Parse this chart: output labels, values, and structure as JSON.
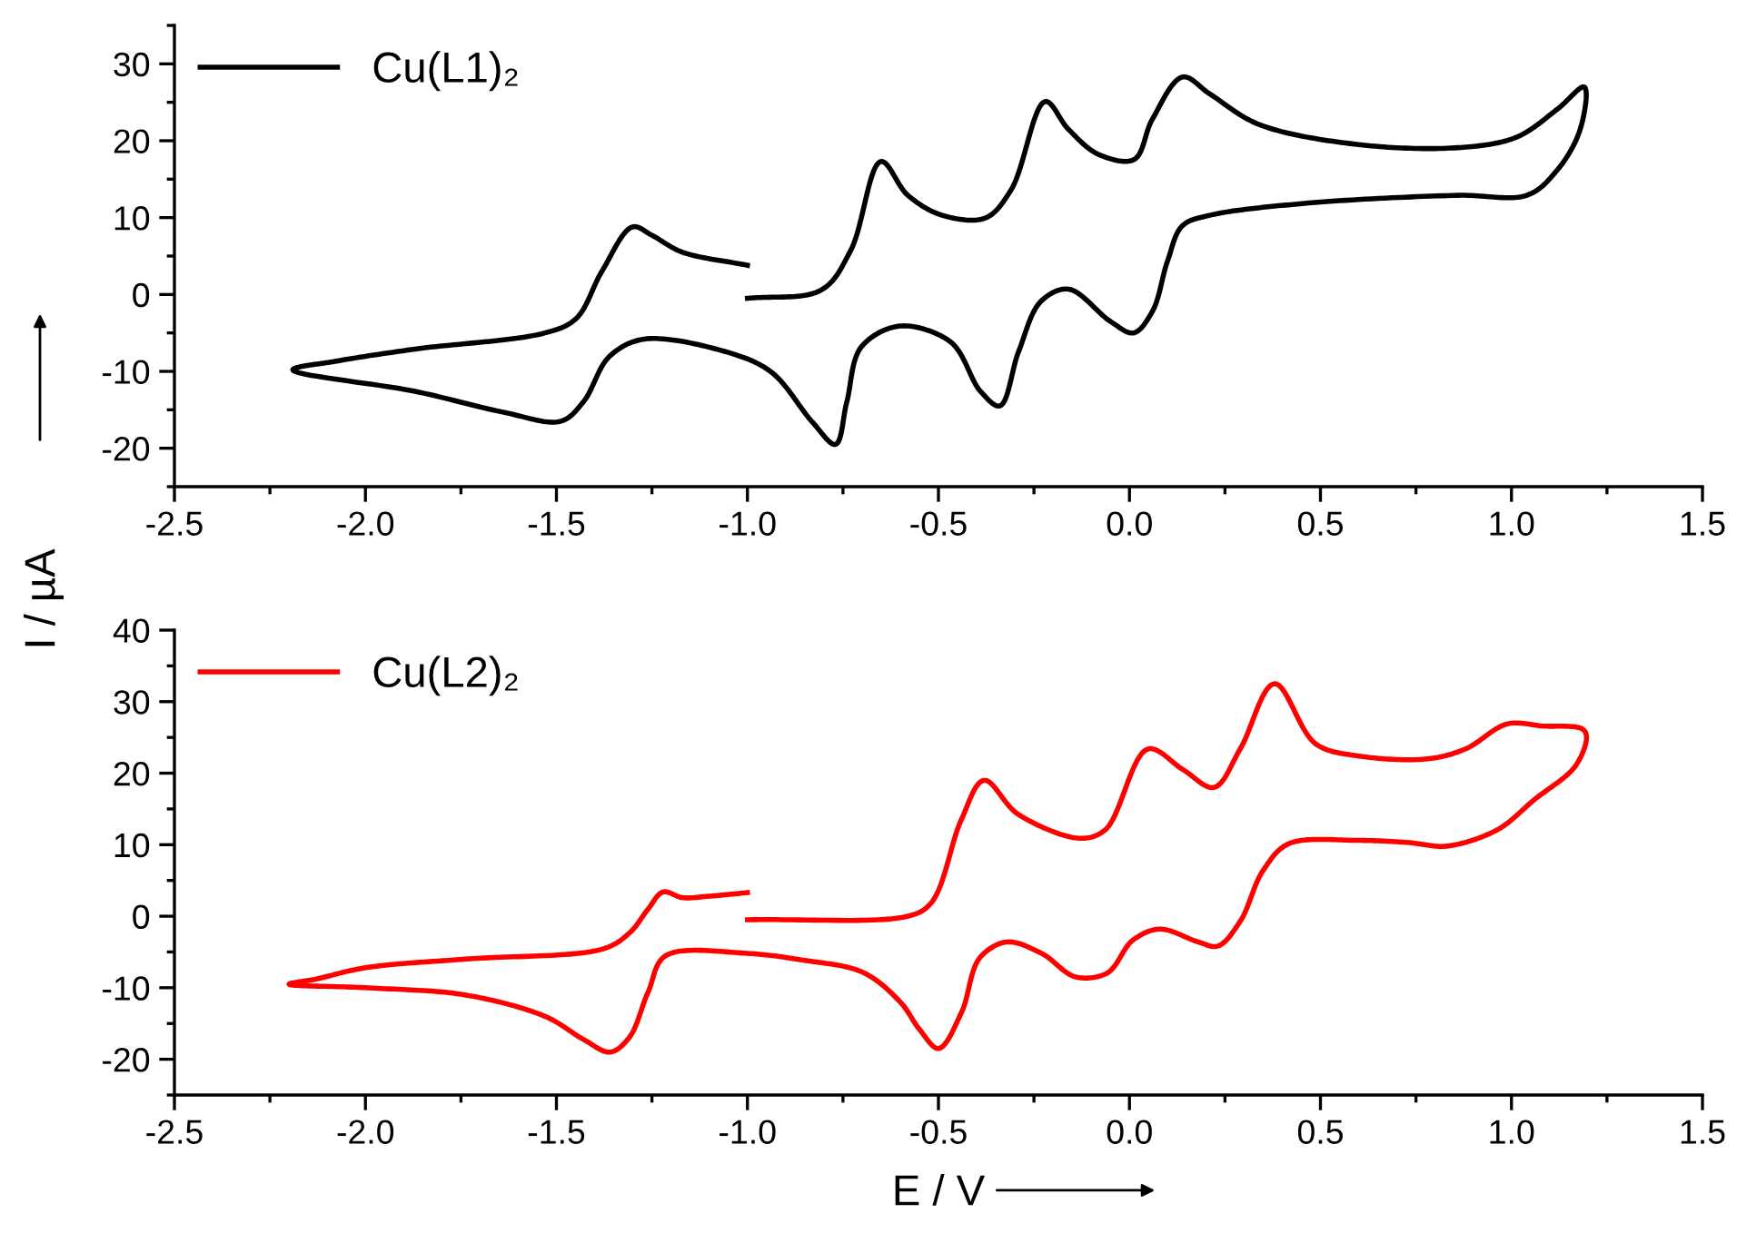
{
  "chart_data": [
    {
      "type": "line",
      "ylabel": "I / µA",
      "legend": "top left",
      "grid": false,
      "xlim": [
        -2.5,
        1.5
      ],
      "xticks": [
        -2.5,
        {
          "value": -2,
          "label": "-2.0"
        },
        -1.5,
        {
          "value": -1,
          "label": "-1.0"
        },
        -0.5,
        {
          "value": 0,
          "label": "0.0"
        },
        0.5,
        {
          "value": 1,
          "label": "1.0"
        },
        1.5
      ],
      "ylim": [
        -25,
        35
      ],
      "yticks": [
        -20,
        -10,
        0,
        10,
        20,
        30
      ],
      "series": [
        {
          "name": "Cu(L1)₂",
          "color": "#000000",
          "x": [
            -1.0,
            -0.81,
            -0.73,
            -0.65,
            -0.58,
            -0.49,
            -0.38,
            -0.31,
            -0.22,
            -0.16,
            -0.08,
            0.01,
            0.06,
            0.14,
            0.21,
            0.34,
            0.6,
            0.86,
            1.01,
            1.12,
            1.19,
            1.18,
            1.12,
            1.04,
            0.86,
            0.47,
            0.21,
            0.14,
            0.1,
            0.06,
            0.01,
            -0.05,
            -0.16,
            -0.23,
            -0.29,
            -0.34,
            -0.39,
            -0.47,
            -0.6,
            -0.7,
            -0.74,
            -0.77,
            -0.83,
            -0.94,
            -1.06,
            -1.27,
            -1.36,
            -1.43,
            -1.49,
            -1.64,
            -1.87,
            -2.19,
            -2.08,
            -1.87,
            -1.53,
            -1.45,
            -1.38,
            -1.3,
            -1.25,
            -1.17,
            -1.0
          ],
          "values": [
            -0.5,
            0.5,
            5.7,
            17.3,
            12.9,
            10.3,
            9.9,
            13.6,
            25.1,
            21.5,
            18.2,
            17.5,
            22.8,
            28.3,
            26.1,
            22.1,
            19.5,
            19.1,
            20.4,
            24.1,
            27,
            21.5,
            16.2,
            12.9,
            12.9,
            11.9,
            10.3,
            9,
            4.4,
            -2.2,
            -5,
            -3.5,
            0.7,
            -0.8,
            -7.4,
            -14.5,
            -12.6,
            -6.1,
            -4.1,
            -6.7,
            -14,
            -19.5,
            -16.6,
            -10,
            -7.4,
            -5.8,
            -8,
            -14,
            -16.5,
            -15.3,
            -12.6,
            -9.8,
            -8.7,
            -7.1,
            -5,
            -3.2,
            3.1,
            8.8,
            7.7,
            5.5,
            3.8
          ]
        }
      ]
    },
    {
      "type": "line",
      "xlabel": "E / V",
      "legend": "top left",
      "grid": false,
      "xlim": [
        -2.5,
        1.5
      ],
      "xticks": [
        -2.5,
        {
          "value": -2,
          "label": "-2.0"
        },
        -1.5,
        {
          "value": -1,
          "label": "-1.0"
        },
        -0.5,
        {
          "value": 0,
          "label": "0.0"
        },
        0.5,
        {
          "value": 1,
          "label": "1.0"
        },
        1.5
      ],
      "ylim": [
        -25,
        40
      ],
      "yticks": [
        -20,
        -10,
        0,
        10,
        20,
        30,
        40
      ],
      "series": [
        {
          "name": "Cu(L2)₂",
          "color": "#ff0000",
          "x": [
            -1.0,
            -0.58,
            -0.52,
            -0.44,
            -0.38,
            -0.29,
            -0.13,
            -0.065,
            0.05,
            0.14,
            0.22,
            0.29,
            0.38,
            0.49,
            0.6,
            0.78,
            0.88,
            0.99,
            1.08,
            1.19,
            1.17,
            1.06,
            0.96,
            0.83,
            0.73,
            0.6,
            0.42,
            0.35,
            0.29,
            0.23,
            0.18,
            0.08,
            0.01,
            -0.06,
            -0.14,
            -0.23,
            -0.32,
            -0.39,
            -0.44,
            -0.5,
            -0.55,
            -0.6,
            -0.7,
            -0.86,
            -1.0,
            -1.21,
            -1.26,
            -1.31,
            -1.36,
            -1.43,
            -1.53,
            -1.74,
            -2.0,
            -2.2,
            -2.13,
            -2.0,
            -1.74,
            -1.38,
            -1.31,
            -1.26,
            -1.22,
            -1.17,
            -1.1,
            -1.0
          ],
          "values": [
            -0.5,
            0,
            1.8,
            13.5,
            19,
            14.2,
            10.9,
            12,
            23.4,
            20.5,
            18,
            23.4,
            32.5,
            24,
            22.4,
            22,
            23.4,
            26.9,
            26.6,
            26,
            21.2,
            16.3,
            12,
            9.8,
            10.3,
            10.6,
            10.2,
            6.4,
            -0.7,
            -4.2,
            -3.6,
            -1.8,
            -3.3,
            -8,
            -8.5,
            -5.2,
            -3.6,
            -5.7,
            -13.5,
            -18.5,
            -15.8,
            -12,
            -7.8,
            -6.1,
            -5.2,
            -5.4,
            -10.6,
            -17,
            -19,
            -17.2,
            -14,
            -11,
            -10,
            -9.5,
            -8.8,
            -7.2,
            -6,
            -4.6,
            -2.4,
            1,
            3.4,
            2.6,
            2.8,
            3.3
          ]
        }
      ]
    }
  ]
}
